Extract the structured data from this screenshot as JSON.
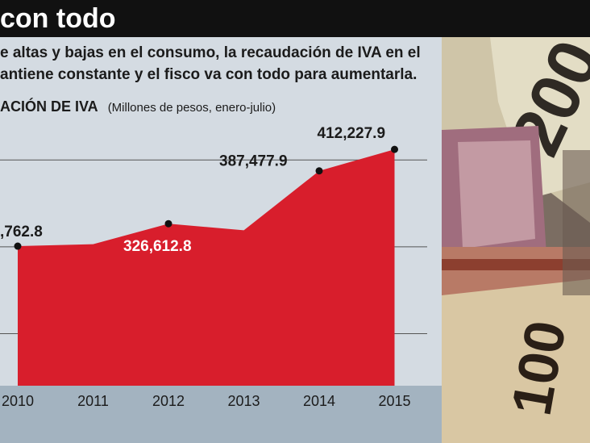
{
  "header": {
    "title": "con todo",
    "subtitle": "e altas y bajas en el consumo, la recaudación de IVA en el\nantiene constante y el fisco va con todo para aumentarla."
  },
  "chart_heading": {
    "label": "ACIÓN DE IVA",
    "note": "(Millones de pesos, enero-julio)"
  },
  "colors": {
    "area": "#d81e2c",
    "panel": "#d4dbe2",
    "axis_band": "#a3b3c0",
    "gridline": "#555555"
  },
  "icons": [
    "banknote-photo"
  ],
  "chart_data": {
    "type": "area",
    "title": "",
    "xlabel": "",
    "ylabel": "",
    "categories": [
      "2010",
      "2011",
      "2012",
      "2013",
      "2014",
      "2015"
    ],
    "series": [
      {
        "values": [
          300762.8,
          303000,
          326612.8,
          319000,
          387477.9,
          412227.9
        ]
      }
    ],
    "data_labels": [
      ",762.8",
      "",
      "326,612.8",
      "",
      "387,477.9",
      "412,227.9"
    ],
    "ylim": [
      140000,
      430000
    ],
    "grid": true,
    "legend": "none"
  }
}
